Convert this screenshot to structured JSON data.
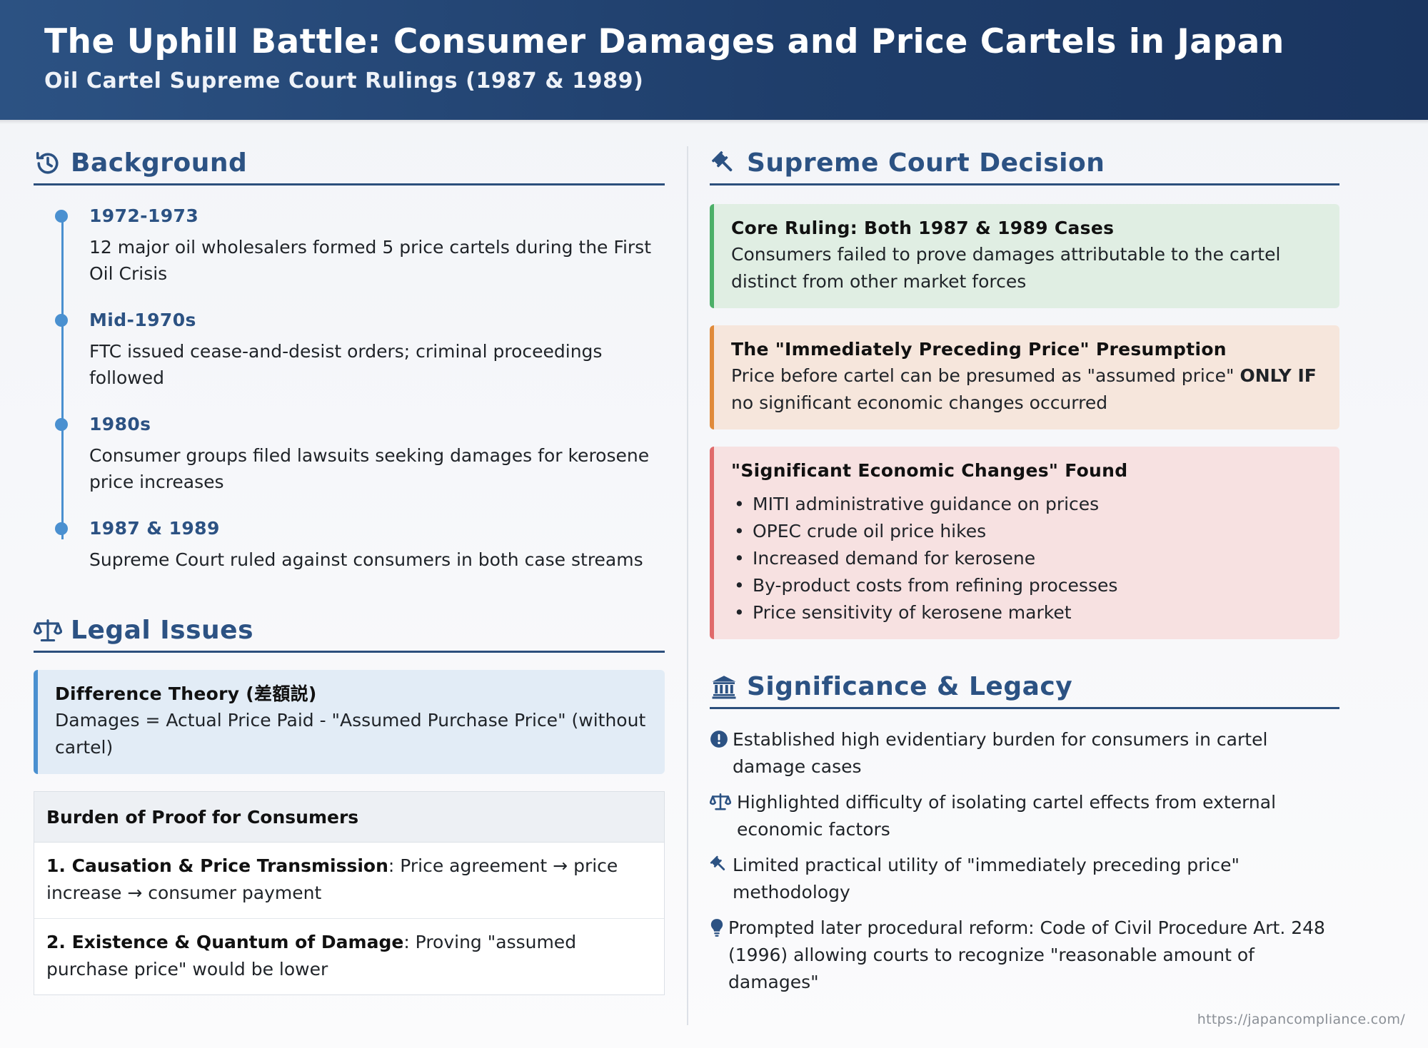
{
  "header": {
    "title": "The Uphill Battle: Consumer Damages and Price Cartels in Japan",
    "subtitle": "Oil Cartel Supreme Court Rulings (1987 & 1989)"
  },
  "background": {
    "heading": "Background",
    "icon": "history-icon",
    "timeline": [
      {
        "date": "1972-1973",
        "text": "12 major oil wholesalers formed 5 price cartels during the First Oil Crisis"
      },
      {
        "date": "Mid-1970s",
        "text": "FTC issued cease-and-desist orders; criminal proceedings followed"
      },
      {
        "date": "1980s",
        "text": "Consumer groups filed lawsuits seeking damages for kerosene price increases"
      },
      {
        "date": "1987 & 1989",
        "text": "Supreme Court ruled against consumers in both case streams"
      }
    ]
  },
  "legal_issues": {
    "heading": "Legal Issues",
    "icon": "scales-icon",
    "difference_theory": {
      "title": "Difference Theory (差額説)",
      "text": "Damages = Actual Price Paid - \"Assumed Purchase Price\" (without cartel)"
    },
    "burden": {
      "title": "Burden of Proof for Consumers",
      "rows": [
        {
          "label": "1. Causation & Price Transmission",
          "text": ": Price agreement → price increase → consumer payment"
        },
        {
          "label": "2. Existence & Quantum of Damage",
          "text": ": Proving \"assumed purchase price\" would be lower"
        }
      ]
    }
  },
  "decision": {
    "heading": "Supreme Court Decision",
    "icon": "gavel-icon",
    "core": {
      "title": "Core Ruling: Both 1987 & 1989 Cases",
      "text": "Consumers failed to prove damages attributable to the cartel distinct from other market forces"
    },
    "presumption": {
      "title": "The \"Immediately Preceding Price\" Presumption",
      "text_before": "Price before cartel can be presumed as \"assumed price\" ",
      "text_bold": "ONLY IF",
      "text_after": " no significant economic changes occurred"
    },
    "changes": {
      "title": "\"Significant Economic Changes\" Found",
      "items": [
        "MITI administrative guidance on prices",
        "OPEC crude oil price hikes",
        "Increased demand for kerosene",
        "By-product costs from refining processes",
        "Price sensitivity of kerosene market"
      ]
    }
  },
  "significance": {
    "heading": "Significance & Legacy",
    "icon": "landmark-icon",
    "items": [
      {
        "icon": "exclamation-circle-icon",
        "text": "Established high evidentiary burden for consumers in cartel damage cases"
      },
      {
        "icon": "scales-icon",
        "text": "Highlighted difficulty of isolating cartel effects from external economic factors"
      },
      {
        "icon": "gavel-icon",
        "text": "Limited practical utility of \"immediately preceding price\" methodology"
      },
      {
        "icon": "lightbulb-icon",
        "text": "Prompted later procedural reform: Code of Civil Procedure Art. 248 (1996) allowing courts to recognize \"reasonable amount of damages\""
      }
    ]
  },
  "footer": {
    "url": "https://japancompliance.com/"
  },
  "colors": {
    "header_start": "#2c5283",
    "header_end": "#1a3560",
    "heading": "#2c5283",
    "timeline": "#4a90d0",
    "green": "#4caf68",
    "orange": "#e08a3a",
    "red": "#e06a6a"
  }
}
